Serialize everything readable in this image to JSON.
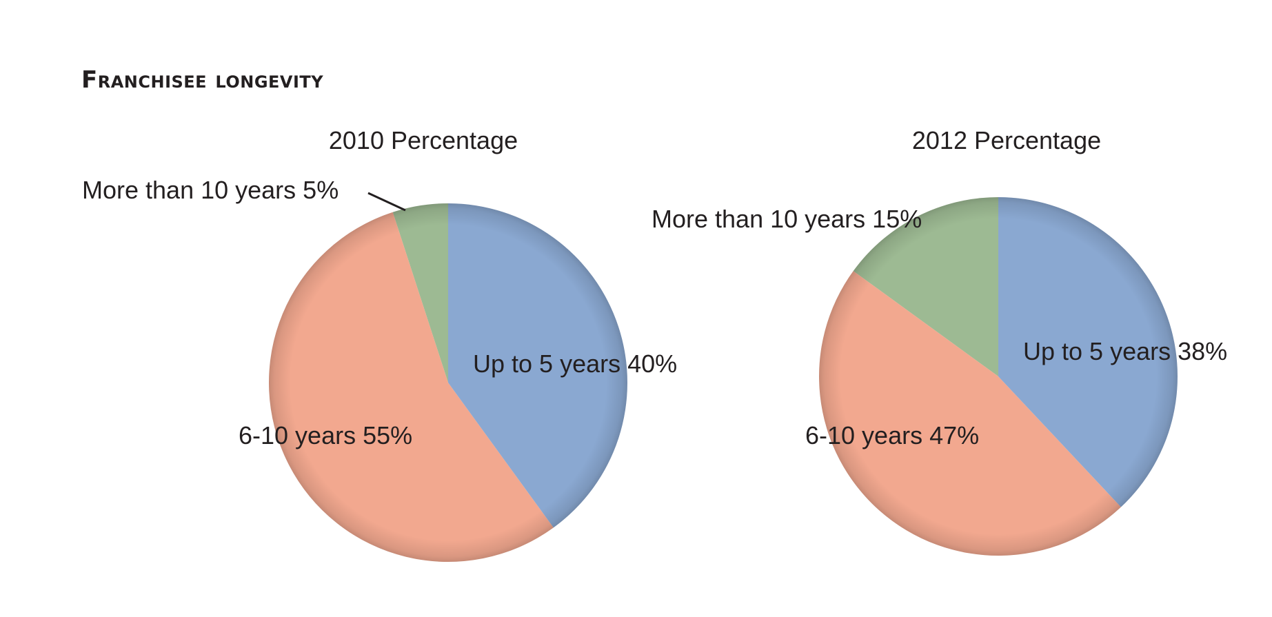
{
  "title": "Franchisee longevity",
  "colors": {
    "up_to_5": "#8aa8d1",
    "six_to_ten": "#f2a88f",
    "more_than_10": "#9dba93"
  },
  "chart_data": [
    {
      "type": "pie",
      "title": "2010 Percentage",
      "slices": [
        {
          "label": "Up to 5 years 40%",
          "name": "Up to 5 years",
          "value": 40,
          "color_key": "up_to_5"
        },
        {
          "label": "6-10 years 55%",
          "name": "6-10 years",
          "value": 55,
          "color_key": "six_to_ten"
        },
        {
          "label": "More than 10 years 5%",
          "name": "More than 10 years",
          "value": 5,
          "color_key": "more_than_10"
        }
      ]
    },
    {
      "type": "pie",
      "title": "2012 Percentage",
      "slices": [
        {
          "label": "Up to 5 years 38%",
          "name": "Up to 5 years",
          "value": 38,
          "color_key": "up_to_5"
        },
        {
          "label": "6-10 years 47%",
          "name": "6-10 years",
          "value": 47,
          "color_key": "six_to_ten"
        },
        {
          "label": "More than 10 years 15%",
          "name": "More than 10 years",
          "value": 15,
          "color_key": "more_than_10"
        }
      ]
    }
  ]
}
